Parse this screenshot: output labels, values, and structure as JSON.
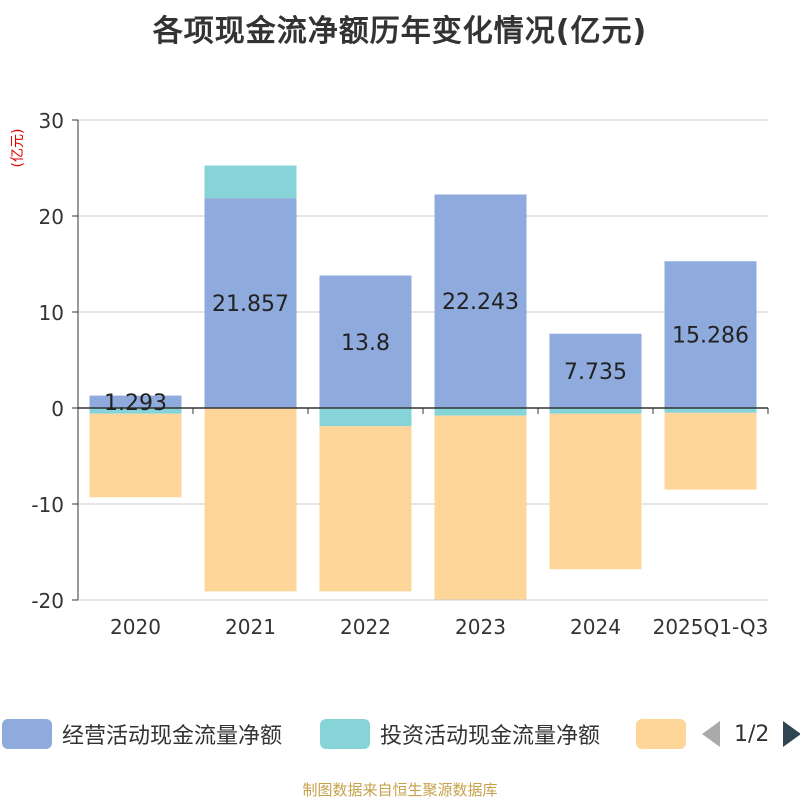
{
  "chart_data": {
    "type": "bar",
    "stacked": true,
    "title": "各项现金流净额历年变化情况(亿元)",
    "ylabel": "(亿元)",
    "categories": [
      "2020",
      "2021",
      "2022",
      "2023",
      "2024",
      "2025Q1-Q3"
    ],
    "ylim": [
      -20,
      30
    ],
    "yticks": [
      "30",
      "20",
      "10",
      "0",
      "-10",
      "-20"
    ],
    "grid": true,
    "series": [
      {
        "name": "经营活动现金流量净额",
        "color": "#8faadc",
        "values": [
          1.293,
          21.857,
          13.8,
          22.243,
          7.735,
          15.286
        ],
        "labels": [
          "1.293",
          "21.857",
          "13.8",
          "22.243",
          "7.735",
          "15.286"
        ]
      },
      {
        "name": "投资活动现金流量净额",
        "color": "#86d4d8",
        "values": [
          -0.6,
          3.4,
          -1.9,
          -0.8,
          -0.6,
          -0.5
        ]
      },
      {
        "name": "",
        "color": "#ffd699",
        "values": [
          -8.7,
          -19.1,
          -17.2,
          -19.2,
          -16.2,
          -8.0
        ]
      }
    ],
    "legend": {
      "position": "bottom",
      "page": "1/2"
    }
  },
  "source": "制图数据来自恒生聚源数据库"
}
